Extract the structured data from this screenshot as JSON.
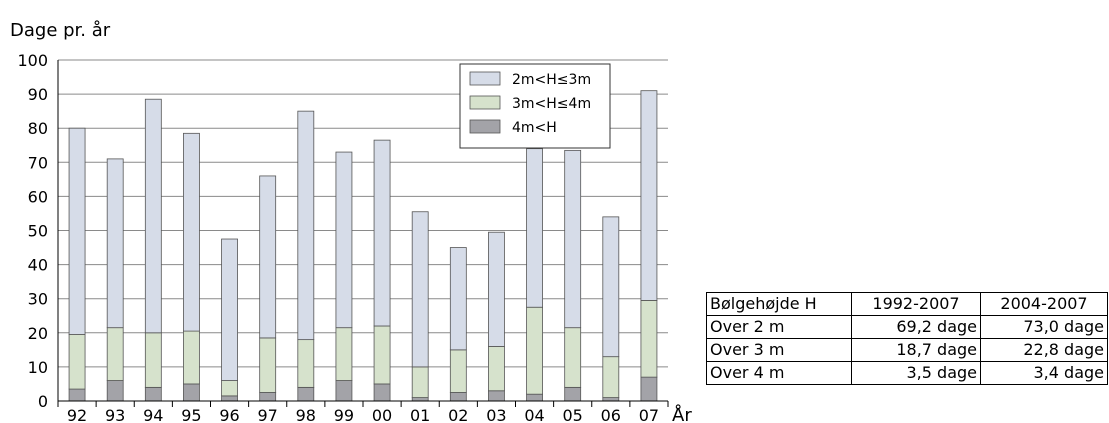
{
  "chart_data": {
    "type": "bar",
    "stacked": true,
    "ylabel": "Dage pr. år",
    "xlabel": "År",
    "ylim": [
      0,
      100
    ],
    "yticks": [
      0,
      10,
      20,
      30,
      40,
      50,
      60,
      70,
      80,
      90,
      100
    ],
    "grid": true,
    "legend_position": "top-right",
    "categories": [
      "92",
      "93",
      "94",
      "95",
      "96",
      "97",
      "98",
      "99",
      "00",
      "01",
      "02",
      "03",
      "04",
      "05",
      "06",
      "07"
    ],
    "series": [
      {
        "name": "4m<H",
        "color": "#a3a3a8",
        "values": [
          3.5,
          6,
          4,
          5,
          1.5,
          2.5,
          4,
          6,
          5,
          1,
          2.5,
          3,
          2,
          4,
          1,
          7
        ]
      },
      {
        "name": "3m<H≤4m",
        "color": "#d6e2cc",
        "values": [
          16,
          15.5,
          16,
          15.5,
          4.5,
          16,
          14,
          15.5,
          17,
          9,
          12.5,
          13,
          25.5,
          17.5,
          12,
          22.5
        ]
      },
      {
        "name": "2m<H≤3m",
        "color": "#d6dce8",
        "values": [
          60.5,
          49.5,
          68.5,
          58,
          41.5,
          47.5,
          67,
          51.5,
          54.5,
          45.5,
          30,
          33.5,
          46.5,
          52,
          41,
          61.5
        ]
      }
    ],
    "legend_order": [
      2,
      1,
      0
    ]
  },
  "table": {
    "header": [
      "Bølgehøjde H",
      "1992-2007",
      "2004-2007"
    ],
    "rows": [
      [
        "Over 2 m",
        "69,2 dage",
        "73,0 dage"
      ],
      [
        "Over 3 m",
        "18,7 dage",
        "22,8 dage"
      ],
      [
        "Over 4 m",
        "3,5 dage",
        "3,4 dage"
      ]
    ]
  }
}
